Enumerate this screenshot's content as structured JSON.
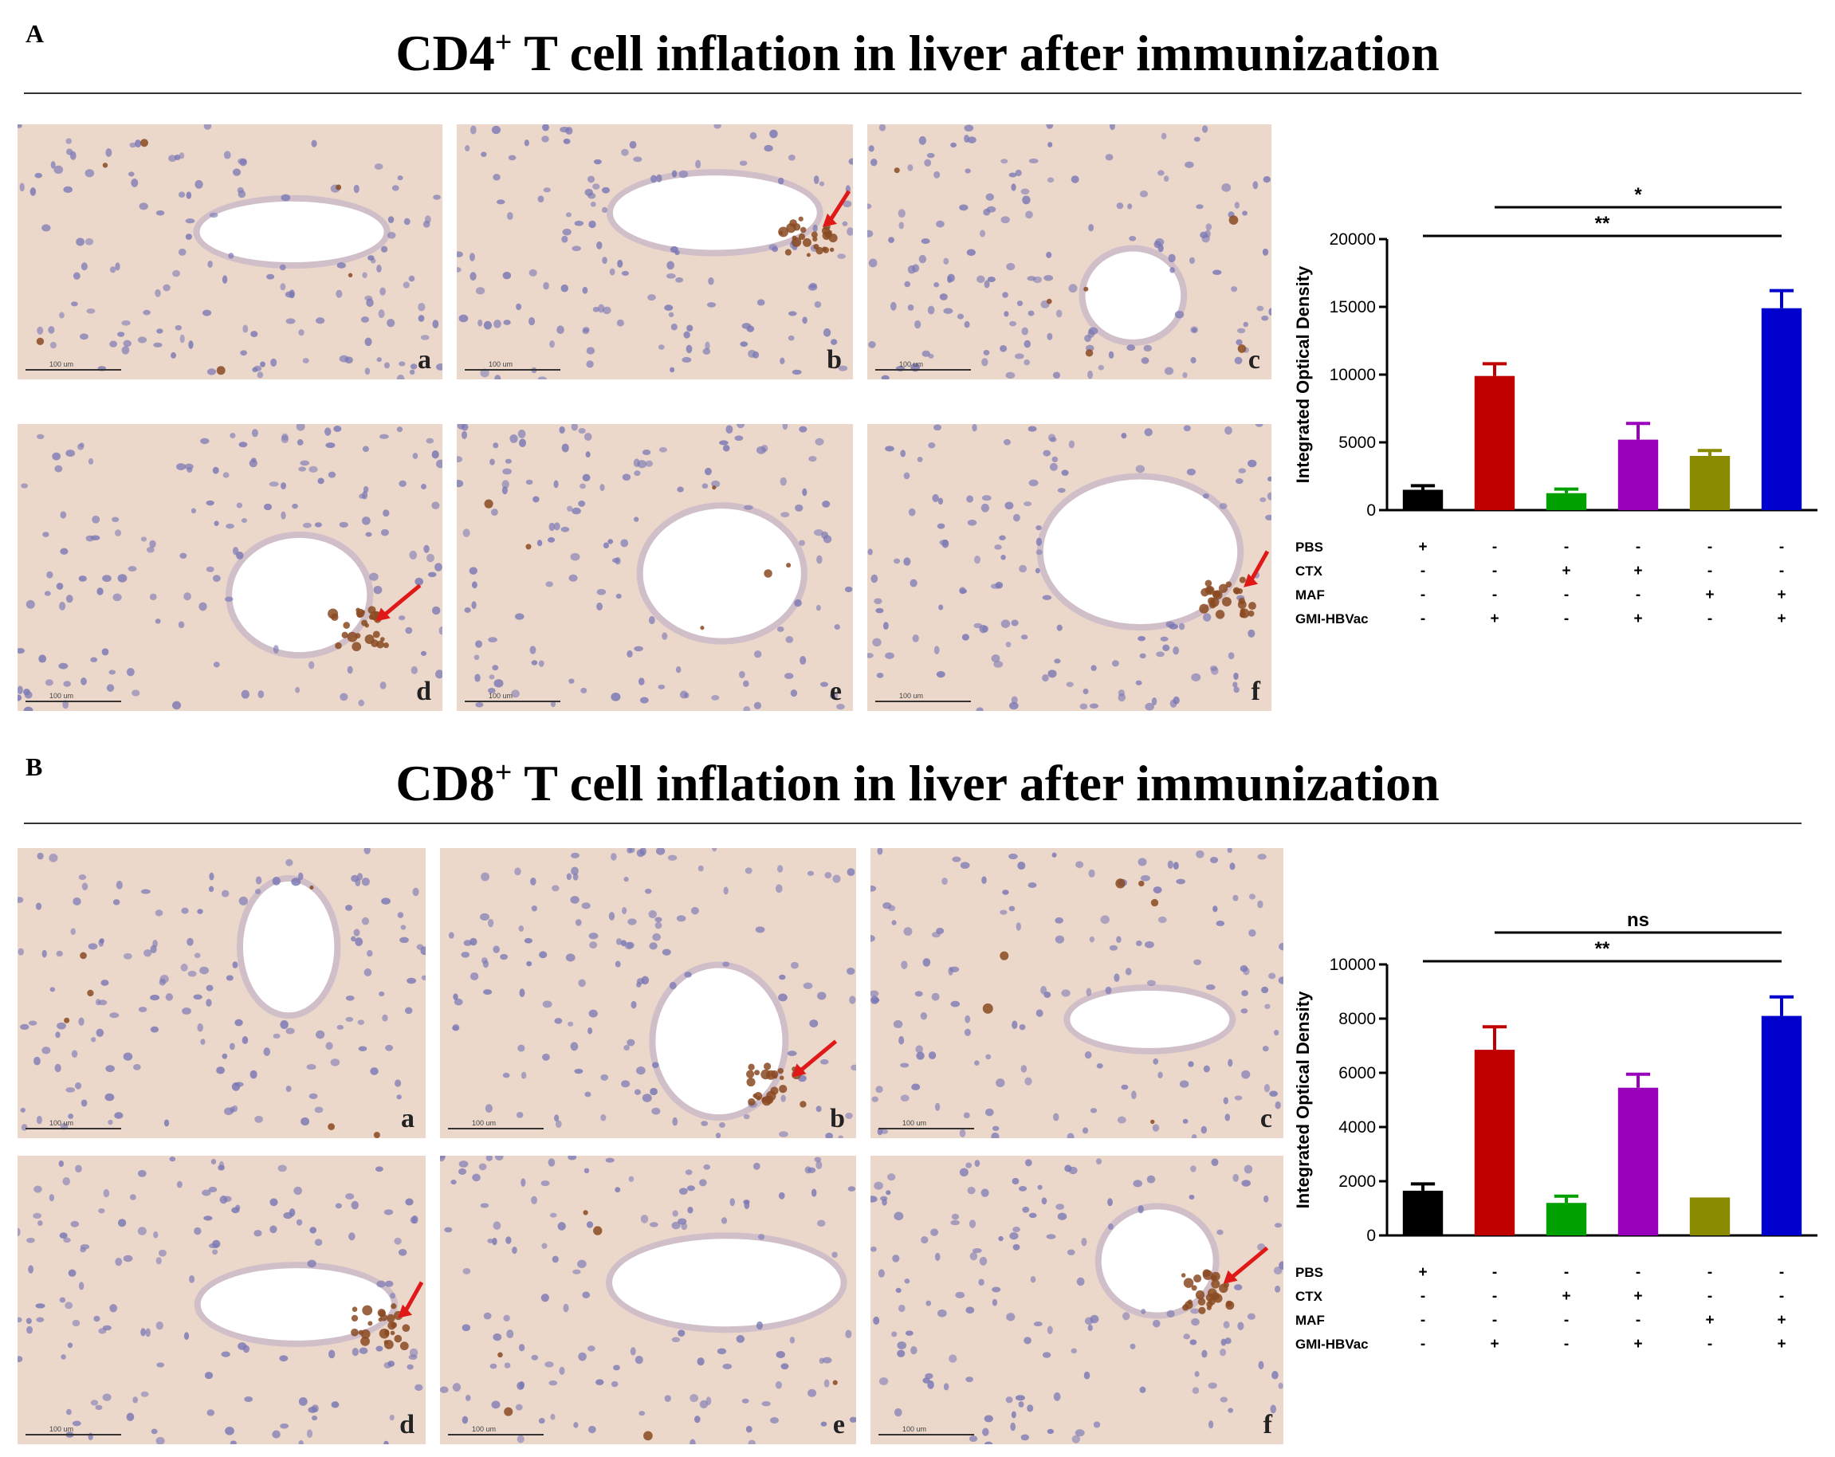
{
  "panels": [
    {
      "letter": "A",
      "title_main": "CD4",
      "title_sup": "+",
      "title_rest": " T cell inflation in liver after immunization",
      "micrographs": [
        {
          "label": "a",
          "scale_text": "100 um",
          "arrow": false
        },
        {
          "label": "b",
          "scale_text": "100 um",
          "arrow": true
        },
        {
          "label": "c",
          "scale_text": "100 um",
          "arrow": false
        },
        {
          "label": "d",
          "scale_text": "100 um",
          "arrow": true
        },
        {
          "label": "e",
          "scale_text": "100 um",
          "arrow": false
        },
        {
          "label": "f",
          "scale_text": "100 um",
          "arrow": true
        }
      ]
    },
    {
      "letter": "B",
      "title_main": "CD8",
      "title_sup": "+",
      "title_rest": " T cell inflation in liver after immunization",
      "micrographs": [
        {
          "label": "a",
          "scale_text": "100 um",
          "arrow": false
        },
        {
          "label": "b",
          "scale_text": "100 um",
          "arrow": true
        },
        {
          "label": "c",
          "scale_text": "100 um",
          "arrow": false
        },
        {
          "label": "d",
          "scale_text": "100 um",
          "arrow": true
        },
        {
          "label": "e",
          "scale_text": "100 um",
          "arrow": false
        },
        {
          "label": "f",
          "scale_text": "100 um",
          "arrow": true
        }
      ]
    }
  ],
  "colors": {
    "tissue": "#ecd7cb",
    "nucleus": "#7a78b4",
    "brown_stain": "#8a4a22",
    "arrow": "#e01818",
    "bar_colors": [
      "#000000",
      "#c00000",
      "#00a000",
      "#9900bb",
      "#8a8a00",
      "#0000cc"
    ]
  },
  "chart_data": [
    {
      "type": "bar",
      "ylabel": "Integrated Optical Density",
      "ylim": [
        0,
        20000
      ],
      "yticks": [
        0,
        5000,
        10000,
        15000,
        20000
      ],
      "n_groups": 6,
      "values": [
        1500,
        9900,
        1250,
        5200,
        4000,
        14900
      ],
      "errors": [
        300,
        900,
        300,
        1200,
        400,
        1300
      ],
      "row_labels": [
        "PBS",
        "CTX",
        "MAF",
        "GMI-HBVac"
      ],
      "rows": [
        [
          "+",
          "-",
          "-",
          "-",
          "-",
          "-"
        ],
        [
          "-",
          "-",
          "+",
          "+",
          "-",
          "-"
        ],
        [
          "-",
          "-",
          "-",
          "-",
          "+",
          "+"
        ],
        [
          "-",
          "+",
          "-",
          "+",
          "-",
          "+"
        ]
      ],
      "comparisons": [
        {
          "from": 2,
          "to": 6,
          "label": "*"
        },
        {
          "from": 1,
          "to": 6,
          "label": "**"
        }
      ]
    },
    {
      "type": "bar",
      "ylabel": "Integrated Optical Density",
      "ylim": [
        0,
        10000
      ],
      "yticks": [
        0,
        2000,
        4000,
        6000,
        8000,
        10000
      ],
      "n_groups": 6,
      "values": [
        1650,
        6850,
        1200,
        5450,
        1400,
        8100
      ],
      "errors": [
        250,
        850,
        250,
        500,
        0,
        700
      ],
      "row_labels": [
        "PBS",
        "CTX",
        "MAF",
        "GMI-HBVac"
      ],
      "rows": [
        [
          "+",
          "-",
          "-",
          "-",
          "-",
          "-"
        ],
        [
          "-",
          "-",
          "+",
          "+",
          "-",
          "-"
        ],
        [
          "-",
          "-",
          "-",
          "-",
          "+",
          "+"
        ],
        [
          "-",
          "+",
          "-",
          "+",
          "-",
          "+"
        ]
      ],
      "comparisons": [
        {
          "from": 2,
          "to": 6,
          "label": "ns"
        },
        {
          "from": 1,
          "to": 6,
          "label": "**"
        }
      ]
    }
  ]
}
